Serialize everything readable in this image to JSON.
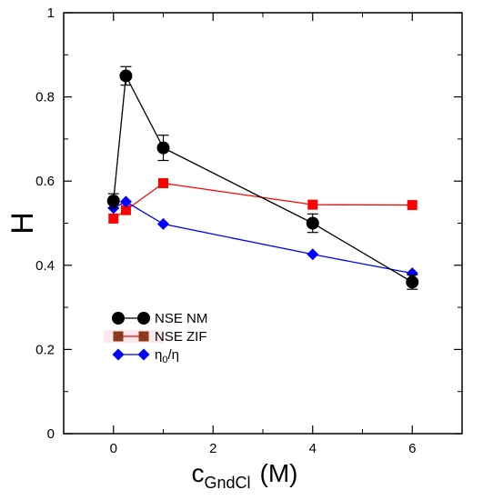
{
  "chart_data": {
    "type": "line",
    "xlabel": {
      "main": "c",
      "sub": "GndCl",
      "unit": "(M)"
    },
    "ylabel": "H",
    "xlim": [
      -1,
      7
    ],
    "ylim": [
      0,
      1
    ],
    "xticks": [
      0,
      2,
      4,
      6
    ],
    "yticks": [
      0,
      0.2,
      0.4,
      0.6,
      0.8,
      1
    ],
    "xtick_labels": [
      "0",
      "2",
      "4",
      "6"
    ],
    "ytick_labels": [
      "0",
      "0.2",
      "0.4",
      "0.6",
      "0.8",
      "1"
    ],
    "grid": false,
    "legend_position": "bottom-left",
    "series": [
      {
        "name": "NSE NM",
        "marker": "circle",
        "color": "#000000",
        "x": [
          0,
          0.25,
          1,
          4,
          6
        ],
        "y": [
          0.553,
          0.85,
          0.679,
          0.5,
          0.36
        ],
        "yerr": [
          0.017,
          0.022,
          0.03,
          0.022,
          0.017
        ]
      },
      {
        "name": "NSE ZIF",
        "marker": "square",
        "color": "#ff0000",
        "legend_marker_color": "#8b3a1a",
        "x": [
          0,
          0.25,
          1,
          4,
          6
        ],
        "y": [
          0.511,
          0.531,
          0.595,
          0.544,
          0.543
        ]
      },
      {
        "name": "η0/η",
        "name_main": "η",
        "name_sub": "0",
        "name_tail": "/η",
        "marker": "diamond",
        "color": "#0000ff",
        "x": [
          0,
          0.25,
          1,
          4,
          6
        ],
        "y": [
          0.536,
          0.551,
          0.498,
          0.426,
          0.381
        ]
      }
    ]
  }
}
